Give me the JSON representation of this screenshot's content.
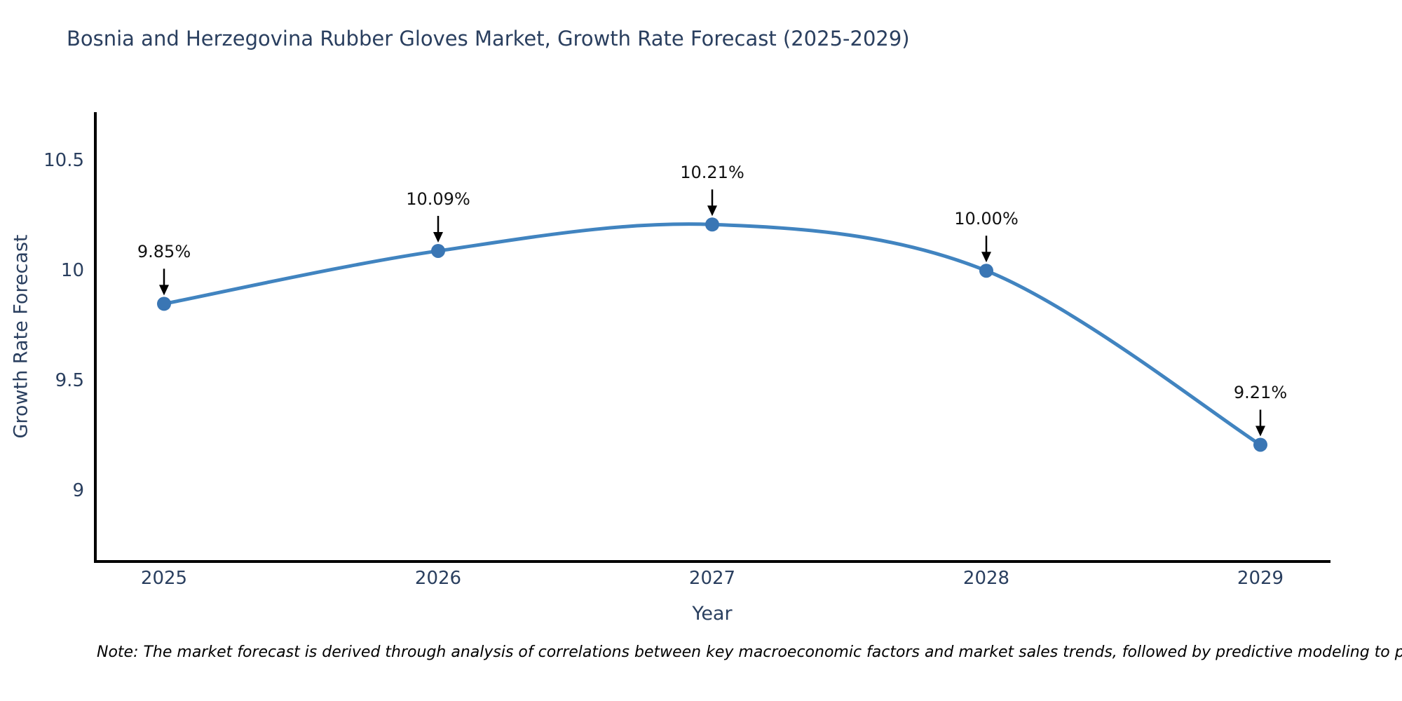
{
  "chart": {
    "title": "Bosnia and Herzegovina Rubber Gloves Market, Growth Rate Forecast (2025-2029)",
    "xlabel": "Year",
    "ylabel": "Growth Rate Forecast",
    "note": "Note: The market forecast is derived through analysis of correlations between key macroeconomic factors and market sales trends, followed by predictive modeling to project future sal"
  },
  "chart_data": {
    "type": "line",
    "title": "Bosnia and Herzegovina Rubber Gloves Market, Growth Rate Forecast (2025-2029)",
    "xlabel": "Year",
    "ylabel": "Growth Rate Forecast",
    "x": [
      "2025",
      "2026",
      "2027",
      "2028",
      "2029"
    ],
    "values": [
      9.85,
      10.09,
      10.21,
      10.0,
      9.21
    ],
    "point_labels": [
      "9.85%",
      "10.09%",
      "10.21%",
      "10.00%",
      "9.21%"
    ],
    "yticks": [
      9,
      9.5,
      10,
      10.5
    ],
    "ytick_labels": [
      "9",
      "9.5",
      "10",
      "10.5"
    ],
    "ylim": [
      8.68,
      10.72
    ],
    "grid": false,
    "legend": "none",
    "line_shape": "spline",
    "line_color": "#4184c0",
    "marker_color": "#3a76b4",
    "axis_color": "#000000",
    "tick_text_color": "#2a3f5f",
    "annotation_text_color": "#111111",
    "annotation_arrow_color": "#000000"
  }
}
